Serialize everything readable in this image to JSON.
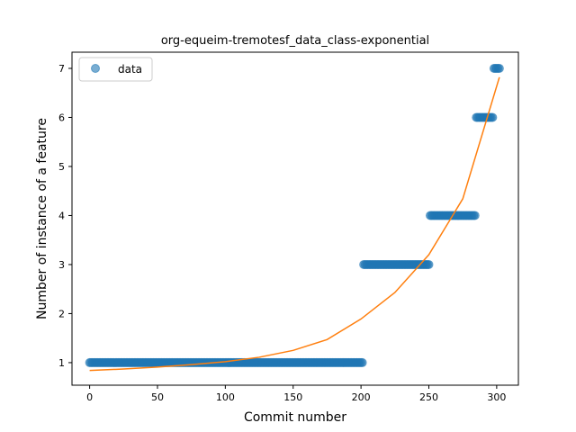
{
  "chart_data": {
    "type": "scatter",
    "title": "org-equeim-tremotesf_data_class-exponential",
    "xlabel": "Commit number",
    "ylabel": "Number of instance of a feature",
    "xlim": [
      -13,
      316
    ],
    "ylim": [
      0.54,
      7.33
    ],
    "xticks": [
      0,
      50,
      100,
      150,
      200,
      250,
      300
    ],
    "yticks": [
      1,
      2,
      3,
      4,
      5,
      6,
      7
    ],
    "legend": {
      "position": "top-left",
      "entries": [
        "data"
      ]
    },
    "colors": {
      "data": "#1f77b4",
      "fit": "#ff7f0e"
    },
    "series": [
      {
        "name": "data",
        "kind": "points",
        "segments": [
          {
            "x_start": 0,
            "x_end": 201,
            "y": 1
          },
          {
            "x_start": 202,
            "x_end": 250,
            "y": 3
          },
          {
            "x_start": 251,
            "x_end": 284,
            "y": 4
          },
          {
            "x_start": 285,
            "x_end": 297,
            "y": 6
          },
          {
            "x_start": 298,
            "x_end": 302,
            "y": 7
          }
        ]
      },
      {
        "kind": "line",
        "x": [
          0,
          25,
          50,
          75,
          100,
          125,
          150,
          175,
          200,
          225,
          250,
          275,
          302
        ],
        "y": [
          0.84,
          0.87,
          0.91,
          0.96,
          1.02,
          1.11,
          1.25,
          1.47,
          1.89,
          2.43,
          3.2,
          4.34,
          6.82
        ]
      }
    ]
  }
}
